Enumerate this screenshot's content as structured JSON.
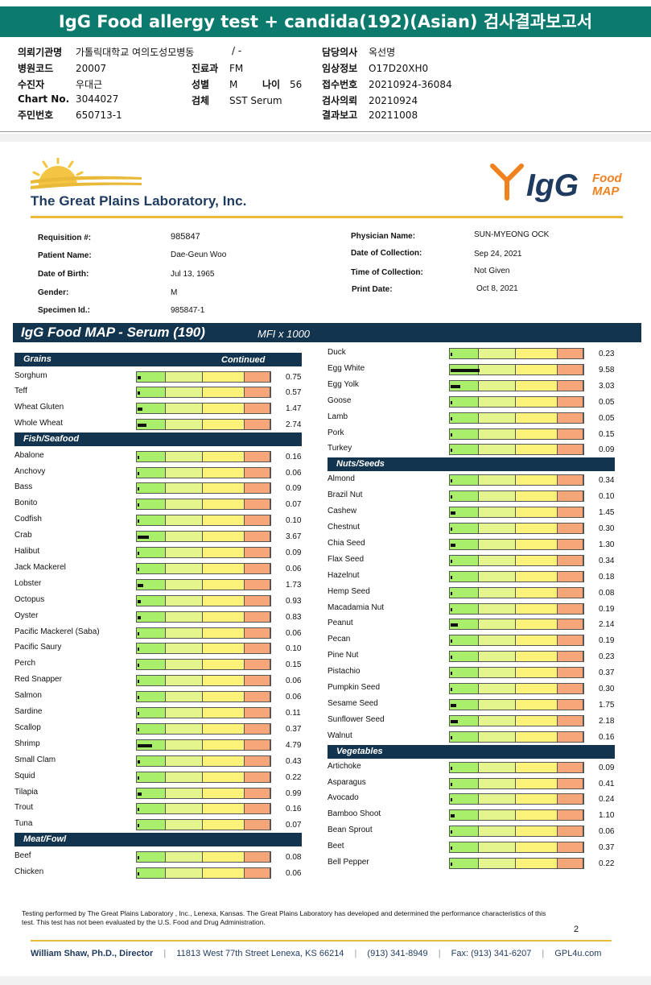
{
  "report_title": "IgG Food allergy test + candida(192)(Asian) 검사결과보고서",
  "kr_info": {
    "institution_label": "의뢰기관명",
    "institution_value": "가톨릭대학교 여의도성모병동",
    "slash": "/ -",
    "doctor_label": "담당의사",
    "doctor_value": "옥선명",
    "hospital_code_label": "병원코드",
    "hospital_code_value": "20007",
    "dept_label": "진료과",
    "dept_value": "FM",
    "visit_label": "임상정보",
    "visit_value": "O17D20XH0",
    "recipient_label": "수진자",
    "recipient_value": "우대근",
    "sex_label": "성별",
    "sex_value": "M",
    "age_label": "나이",
    "age_value": "56",
    "receipt_label": "접수번호",
    "receipt_value": "20210924-36084",
    "chart_label": "Chart No.",
    "chart_value": "3044027",
    "specimen_label": "검체",
    "specimen_value": "SST Serum",
    "request_label": "검사의뢰",
    "request_value": "20210924",
    "id_label": "주민번호",
    "id_value": "650713-1",
    "result_label": "결과보고",
    "result_value": "20211008"
  },
  "lab": {
    "name": "The Great Plains Laboratory, Inc.",
    "brand_igg": "IgG",
    "brand_food": "Food",
    "brand_map": "MAP"
  },
  "patient": {
    "requisition_label": "Requisition #:",
    "requisition_value": "985847",
    "patient_label": "Patient Name:",
    "patient_value": "Dae-Geun Woo",
    "dob_label": "Date of Birth:",
    "dob_value": "Jul 13, 1965",
    "gender_label": "Gender:",
    "gender_value": "M",
    "specimen_label": "Specimen Id.:",
    "specimen_value": "985847-1",
    "physician_label": "Physician Name:",
    "physician_value": "SUN-MYEONG OCK",
    "collection_date_label": "Date of Collection:",
    "collection_date_value": "Sep 24, 2021",
    "collection_time_label": "Time of Collection:",
    "collection_time_value": "Not Given",
    "print_date_label": "Print Date:",
    "print_date_value": "Oct 8, 2021"
  },
  "banner": {
    "title": "IgG Food MAP - Serum (190)",
    "units": "MFI x 1000"
  },
  "scale_max": 40,
  "left_column": [
    {
      "category": "Grains",
      "continued": "Continued",
      "items": [
        {
          "name": "Sorghum",
          "value": "0.75"
        },
        {
          "name": "Teff",
          "value": "0.57"
        },
        {
          "name": "Wheat Gluten",
          "value": "1.47"
        },
        {
          "name": "Whole Wheat",
          "value": "2.74"
        }
      ]
    },
    {
      "category": "Fish/Seafood",
      "items": [
        {
          "name": "Abalone",
          "value": "0.16"
        },
        {
          "name": "Anchovy",
          "value": "0.06"
        },
        {
          "name": "Bass",
          "value": "0.09"
        },
        {
          "name": "Bonito",
          "value": "0.07"
        },
        {
          "name": "Codfish",
          "value": "0.10"
        },
        {
          "name": "Crab",
          "value": "3.67"
        },
        {
          "name": "Halibut",
          "value": "0.09"
        },
        {
          "name": "Jack Mackerel",
          "value": "0.06"
        },
        {
          "name": "Lobster",
          "value": "1.73"
        },
        {
          "name": "Octopus",
          "value": "0.93"
        },
        {
          "name": "Oyster",
          "value": "0.83"
        },
        {
          "name": "Pacific Mackerel (Saba)",
          "value": "0.06"
        },
        {
          "name": "Pacific Saury",
          "value": "0.10"
        },
        {
          "name": "Perch",
          "value": "0.15"
        },
        {
          "name": "Red Snapper",
          "value": "0.06"
        },
        {
          "name": "Salmon",
          "value": "0.06"
        },
        {
          "name": "Sardine",
          "value": "0.11"
        },
        {
          "name": "Scallop",
          "value": "0.37"
        },
        {
          "name": "Shrimp",
          "value": "4.79"
        },
        {
          "name": "Small Clam",
          "value": "0.43"
        },
        {
          "name": "Squid",
          "value": "0.22"
        },
        {
          "name": "Tilapia",
          "value": "0.99"
        },
        {
          "name": "Trout",
          "value": "0.16"
        },
        {
          "name": "Tuna",
          "value": "0.07"
        }
      ]
    },
    {
      "category": "Meat/Fowl",
      "items": [
        {
          "name": "Beef",
          "value": "0.08"
        },
        {
          "name": "Chicken",
          "value": "0.06"
        }
      ]
    }
  ],
  "right_column": [
    {
      "category": "",
      "items": [
        {
          "name": "Duck",
          "value": "0.23"
        },
        {
          "name": "Egg White",
          "value": "9.58"
        },
        {
          "name": "Egg Yolk",
          "value": "3.03"
        },
        {
          "name": "Goose",
          "value": "0.05"
        },
        {
          "name": "Lamb",
          "value": "0.05"
        },
        {
          "name": "Pork",
          "value": "0.15"
        },
        {
          "name": "Turkey",
          "value": "0.09"
        }
      ]
    },
    {
      "category": "Nuts/Seeds",
      "items": [
        {
          "name": "Almond",
          "value": "0.34"
        },
        {
          "name": "Brazil Nut",
          "value": "0.10"
        },
        {
          "name": "Cashew",
          "value": "1.45"
        },
        {
          "name": "Chestnut",
          "value": "0.30"
        },
        {
          "name": "Chia Seed",
          "value": "1.30"
        },
        {
          "name": "Flax Seed",
          "value": "0.34"
        },
        {
          "name": "Hazelnut",
          "value": "0.18"
        },
        {
          "name": "Hemp Seed",
          "value": "0.08"
        },
        {
          "name": "Macadamia Nut",
          "value": "0.19"
        },
        {
          "name": "Peanut",
          "value": "2.14"
        },
        {
          "name": "Pecan",
          "value": "0.19"
        },
        {
          "name": "Pine Nut",
          "value": "0.23"
        },
        {
          "name": "Pistachio",
          "value": "0.37"
        },
        {
          "name": "Pumpkin Seed",
          "value": "0.30"
        },
        {
          "name": "Sesame Seed",
          "value": "1.75"
        },
        {
          "name": "Sunflower Seed",
          "value": "2.18"
        },
        {
          "name": "Walnut",
          "value": "0.16"
        }
      ]
    },
    {
      "category": "Vegetables",
      "items": [
        {
          "name": "Artichoke",
          "value": "0.09"
        },
        {
          "name": "Asparagus",
          "value": "0.41"
        },
        {
          "name": "Avocado",
          "value": "0.24"
        },
        {
          "name": "Bamboo Shoot",
          "value": "1.10"
        },
        {
          "name": "Bean Sprout",
          "value": "0.06"
        },
        {
          "name": "Beet",
          "value": "0.37"
        },
        {
          "name": "Bell Pepper",
          "value": "0.22"
        }
      ]
    }
  ],
  "footnote": "Testing performed by The Great Plains Laboratory , Inc., Lenexa, Kansas.  The Great Plains Laboratory has developed and determined the performance characteristics of this test.  This test has not been evaluated by the U.S.  Food and Drug Administration.",
  "page_number": "2",
  "footer": {
    "director": "William Shaw, Ph.D., Director",
    "address": "11813 West 77th Street Lenexa, KS 66214",
    "phone": "(913) 341-8949",
    "fax": "Fax: (913) 341-6207",
    "web": "GPL4u.com"
  },
  "colors": {
    "header_teal": "#0d7a6e",
    "navy": "#12344f",
    "gold": "#e9b93a",
    "orange": "#f0811f",
    "zone_green": "#a9ef6b",
    "zone_lime": "#e3f58c",
    "zone_yellow": "#fbf27a",
    "zone_orange": "#f6a679"
  }
}
